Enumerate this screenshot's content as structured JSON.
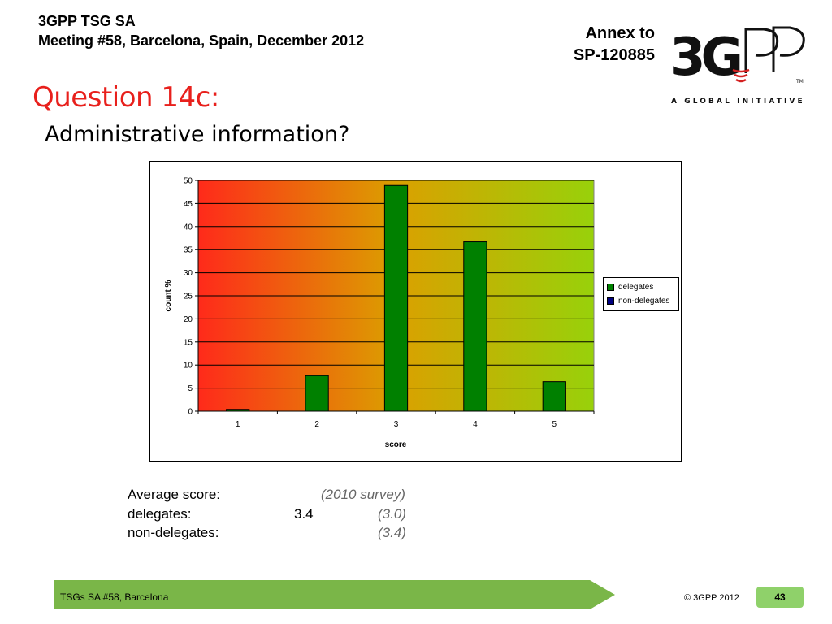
{
  "header": {
    "line1": "3GPP TSG SA",
    "line2": "Meeting #58, Barcelona, Spain, December 2012",
    "annex_line1": "Annex to",
    "annex_line2": "SP-120885",
    "logo_text": "3GPP",
    "logo_tagline": "A GLOBAL INITIATIVE"
  },
  "slide": {
    "title": "Question 14c:",
    "subtitle": "Administrative information?"
  },
  "chart_data": {
    "type": "bar",
    "categories": [
      "1",
      "2",
      "3",
      "4",
      "5"
    ],
    "series": [
      {
        "name": "delegates",
        "values": [
          0.4,
          7.7,
          48.9,
          36.7,
          6.4
        ],
        "color": "#008000"
      },
      {
        "name": "non-delegates",
        "values": [
          0,
          0,
          0,
          0,
          0
        ],
        "color": "#000080"
      }
    ],
    "title": "",
    "xlabel": "score",
    "ylabel": "count %",
    "ylim": [
      0,
      50
    ],
    "yticks": [
      "0",
      "5",
      "10",
      "15",
      "20",
      "25",
      "30",
      "35",
      "40",
      "45",
      "50"
    ],
    "grid": true,
    "legend_position": "right",
    "background_gradient": [
      "#ff2a1a",
      "#dba000",
      "#98d10a"
    ]
  },
  "averages": {
    "heading": "Average score:",
    "survey_label": "(2010 survey)",
    "rows": [
      {
        "label": "delegates:",
        "value": "3.4",
        "previous": "(3.0)"
      },
      {
        "label": "non-delegates:",
        "value": "",
        "previous": "(3.4)"
      }
    ]
  },
  "footer": {
    "text": "TSGs SA #58, Barcelona",
    "copyright": "© 3GPP 2012",
    "page": "43",
    "bar_color": "#7ab648"
  }
}
